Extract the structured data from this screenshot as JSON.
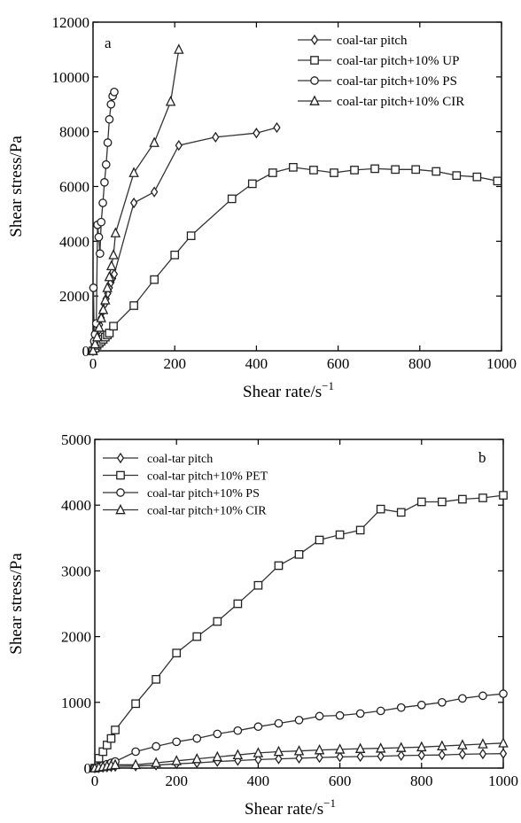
{
  "chart_data": [
    {
      "type": "line",
      "panel_label": "a",
      "xlabel_text": "Shear rate/s",
      "xlabel_sup": "−1",
      "ylabel": "Shear stress/Pa",
      "xlim": [
        0,
        1000
      ],
      "ylim": [
        0,
        12000
      ],
      "xticks": [
        0,
        200,
        400,
        600,
        800,
        1000
      ],
      "yticks": [
        0,
        2000,
        4000,
        6000,
        8000,
        10000,
        12000
      ],
      "xtick_labels": [
        "0",
        "200",
        "400",
        "600",
        "800",
        "1000"
      ],
      "ytick_labels": [
        "0",
        "2000",
        "4000",
        "6000",
        "8000",
        "10000",
        "12000"
      ],
      "grid": false,
      "legend_position": "top-right",
      "series": [
        {
          "name": "coal-tar pitch",
          "marker": "diamond",
          "x": [
            0,
            4,
            8,
            12,
            16,
            20,
            24,
            28,
            32,
            36,
            40,
            44,
            48,
            52,
            100,
            150,
            210,
            300,
            400,
            450
          ],
          "y": [
            0,
            200,
            450,
            700,
            950,
            1200,
            1450,
            1700,
            1900,
            2100,
            2300,
            2500,
            2650,
            2800,
            5400,
            5800,
            7500,
            7800,
            7950,
            8150
          ]
        },
        {
          "name": "coal-tar pitch+10% UP",
          "marker": "square",
          "x": [
            0,
            5,
            10,
            15,
            20,
            25,
            30,
            35,
            40,
            50,
            100,
            150,
            200,
            240,
            340,
            390,
            440,
            490,
            540,
            590,
            640,
            690,
            740,
            790,
            840,
            890,
            940,
            990
          ],
          "y": [
            0,
            100,
            200,
            280,
            350,
            420,
            500,
            580,
            650,
            900,
            1650,
            2600,
            3500,
            4200,
            5550,
            6100,
            6500,
            6700,
            6600,
            6500,
            6600,
            6650,
            6620,
            6620,
            6550,
            6400,
            6350,
            6200
          ]
        },
        {
          "name": "coal-tar pitch+10% PS",
          "marker": "circle",
          "x": [
            1,
            3,
            5,
            8,
            11,
            14,
            17,
            20,
            24,
            28,
            32,
            36,
            40,
            44,
            48,
            52
          ],
          "y": [
            2300,
            350,
            600,
            1000,
            4600,
            4150,
            3550,
            4700,
            5400,
            6150,
            6800,
            7600,
            8450,
            9000,
            9300,
            9450
          ]
        },
        {
          "name": "coal-tar pitch+10% CIR",
          "marker": "triangle",
          "x": [
            0,
            5,
            10,
            15,
            20,
            25,
            30,
            35,
            40,
            45,
            50,
            55,
            100,
            150,
            190,
            210
          ],
          "y": [
            0,
            250,
            500,
            850,
            1200,
            1500,
            1850,
            2300,
            2700,
            3100,
            3500,
            4300,
            6500,
            7600,
            9100,
            11000
          ]
        }
      ]
    },
    {
      "type": "line",
      "panel_label": "b",
      "xlabel_text": "Shear rate/s",
      "xlabel_sup": "−1",
      "ylabel": "Shear stress/Pa",
      "xlim": [
        0,
        1000
      ],
      "ylim": [
        0,
        5000
      ],
      "xticks": [
        0,
        200,
        400,
        600,
        800,
        1000
      ],
      "yticks": [
        0,
        1000,
        2000,
        3000,
        4000,
        5000
      ],
      "xtick_labels": [
        "0",
        "200",
        "400",
        "600",
        "800",
        "1000"
      ],
      "ytick_labels": [
        "0",
        "1000",
        "2000",
        "3000",
        "4000",
        "5000"
      ],
      "grid": false,
      "legend_position": "top-left",
      "series": [
        {
          "name": "coal-tar pitch",
          "marker": "diamond",
          "x": [
            0,
            10,
            20,
            30,
            40,
            50,
            100,
            150,
            200,
            250,
            300,
            350,
            400,
            450,
            500,
            550,
            600,
            650,
            700,
            750,
            800,
            850,
            900,
            950,
            1000
          ],
          "y": [
            0,
            5,
            10,
            15,
            20,
            25,
            30,
            45,
            65,
            80,
            100,
            115,
            130,
            140,
            150,
            160,
            170,
            175,
            180,
            190,
            195,
            200,
            210,
            215,
            220
          ]
        },
        {
          "name": "coal-tar pitch+10% PET",
          "marker": "square",
          "x": [
            0,
            10,
            20,
            30,
            40,
            50,
            100,
            150,
            200,
            250,
            300,
            350,
            400,
            450,
            500,
            550,
            600,
            650,
            700,
            750,
            800,
            850,
            900,
            950,
            1000
          ],
          "y": [
            0,
            150,
            250,
            350,
            450,
            580,
            980,
            1350,
            1750,
            2000,
            2230,
            2500,
            2780,
            3080,
            3250,
            3470,
            3550,
            3620,
            3940,
            3890,
            4050,
            4050,
            4090,
            4110,
            4150
          ]
        },
        {
          "name": "coal-tar pitch+10% PS",
          "marker": "circle",
          "x": [
            0,
            10,
            20,
            30,
            40,
            50,
            100,
            150,
            200,
            250,
            300,
            350,
            400,
            450,
            500,
            550,
            600,
            650,
            700,
            750,
            800,
            850,
            900,
            950,
            1000
          ],
          "y": [
            0,
            20,
            40,
            60,
            80,
            100,
            250,
            330,
            400,
            450,
            520,
            570,
            630,
            680,
            730,
            790,
            800,
            830,
            870,
            920,
            960,
            1000,
            1060,
            1100,
            1130
          ]
        },
        {
          "name": "coal-tar pitch+10% CIR",
          "marker": "triangle",
          "x": [
            0,
            10,
            20,
            30,
            40,
            50,
            100,
            150,
            200,
            250,
            300,
            350,
            400,
            450,
            500,
            550,
            600,
            650,
            700,
            750,
            800,
            850,
            900,
            950,
            1000
          ],
          "y": [
            0,
            10,
            20,
            30,
            40,
            50,
            50,
            80,
            110,
            140,
            170,
            200,
            230,
            250,
            260,
            275,
            285,
            295,
            300,
            310,
            320,
            335,
            350,
            365,
            380
          ]
        }
      ]
    }
  ]
}
